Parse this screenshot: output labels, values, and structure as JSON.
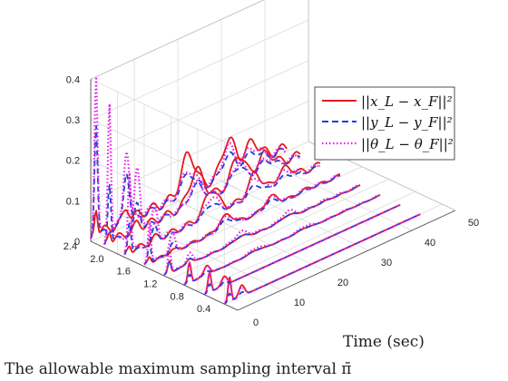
{
  "chart_data": {
    "type": "line",
    "title": "",
    "xlabel": "Time (sec)",
    "ylabel": "The allowable maximum sampling interval π̄",
    "zlabel": "",
    "xlim": [
      0,
      50
    ],
    "ylim": [
      0.2,
      2.4
    ],
    "zlim": [
      0,
      0.4
    ],
    "xticks": [
      "0",
      "10",
      "20",
      "30",
      "40",
      "50"
    ],
    "yticks": [
      "0.4",
      "0.8",
      "1.2",
      "1.6",
      "2.0",
      "2.4"
    ],
    "zticks": [
      "0",
      "0.1",
      "0.2",
      "0.3",
      "0.4"
    ],
    "grid": true,
    "legend_position": "top-right",
    "sampling_intervals": [
      0.4,
      0.7,
      1.0,
      1.3,
      1.6,
      1.9,
      2.2,
      2.4
    ],
    "series": [
      {
        "name": "||x_L − x_F||²",
        "color": "#e41a1c",
        "style": "solid",
        "peaks": [
          0.06,
          0.05,
          0.05,
          0.03,
          0.015,
          0.018,
          0.03,
          0.07
        ],
        "late": [
          0,
          0,
          0.005,
          0.01,
          0.03,
          0.06,
          0.08,
          0.1
        ]
      },
      {
        "name": "||y_L − y_F||²",
        "color": "#1f3fd6",
        "style": "dashed",
        "peaks": [
          0.02,
          0.02,
          0.02,
          0.03,
          0.05,
          0.08,
          0.15,
          0.28
        ],
        "late": [
          0,
          0,
          0.005,
          0.01,
          0.02,
          0.03,
          0.05,
          0.06
        ]
      },
      {
        "name": "||θ_L − θ_F||²",
        "color": "#e61ee6",
        "style": "dotted",
        "peaks": [
          0.05,
          0.05,
          0.05,
          0.06,
          0.1,
          0.2,
          0.35,
          0.4
        ],
        "late": [
          0,
          0,
          0.01,
          0.02,
          0.03,
          0.05,
          0.06,
          0.08
        ]
      }
    ]
  }
}
